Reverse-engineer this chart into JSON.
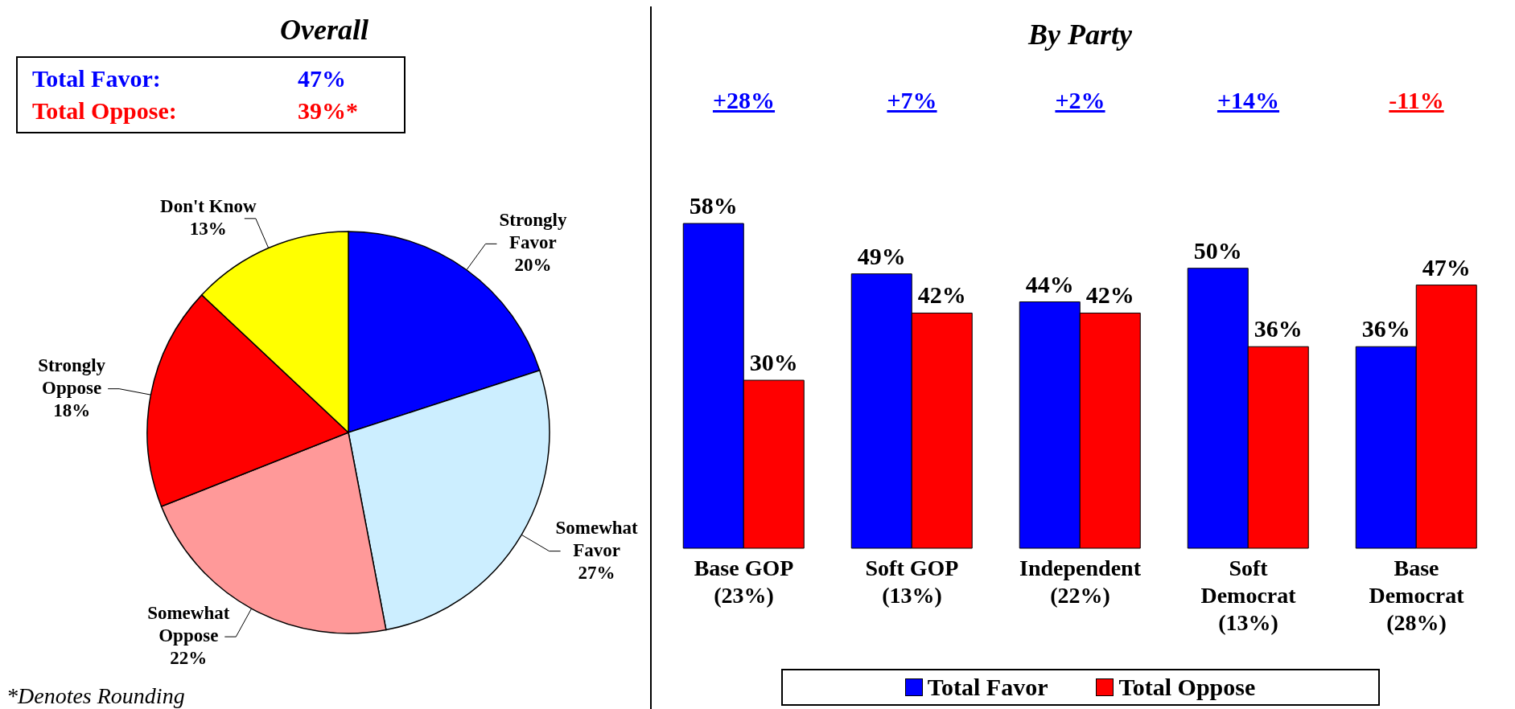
{
  "chart_data": [
    {
      "type": "pie",
      "title": "Overall",
      "categories": [
        "Strongly Favor",
        "Somewhat Favor",
        "Somewhat Oppose",
        "Strongly Oppose",
        "Don't Know"
      ],
      "values": [
        20,
        27,
        22,
        18,
        13
      ],
      "value_labels": [
        "20%",
        "27%",
        "22%",
        "18%",
        "13%"
      ],
      "colors": [
        "#0000ff",
        "#cceeff",
        "#ff9999",
        "#ff0000",
        "#ffff00"
      ],
      "annotations": [
        "Total Favor: 47%",
        "Total Oppose: 39%*",
        "*Denotes Rounding"
      ]
    },
    {
      "type": "bar",
      "title": "By Party",
      "categories": [
        "Base GOP (23%)",
        "Soft GOP (13%)",
        "Independent (22%)",
        "Soft Democrat (13%)",
        "Base Democrat (28%)"
      ],
      "series": [
        {
          "name": "Total Favor",
          "color": "#0000ff",
          "values": [
            58,
            49,
            44,
            50,
            36
          ],
          "value_labels": [
            "58%",
            "49%",
            "44%",
            "50%",
            "36%"
          ]
        },
        {
          "name": "Total Oppose",
          "color": "#ff0000",
          "values": [
            30,
            42,
            42,
            36,
            47
          ],
          "value_labels": [
            "30%",
            "42%",
            "42%",
            "36%",
            "47%"
          ]
        }
      ],
      "annotations": [
        "+28%",
        "+7%",
        "+2%",
        "+14%",
        "-11%"
      ],
      "legend": "bottom"
    }
  ]
}
